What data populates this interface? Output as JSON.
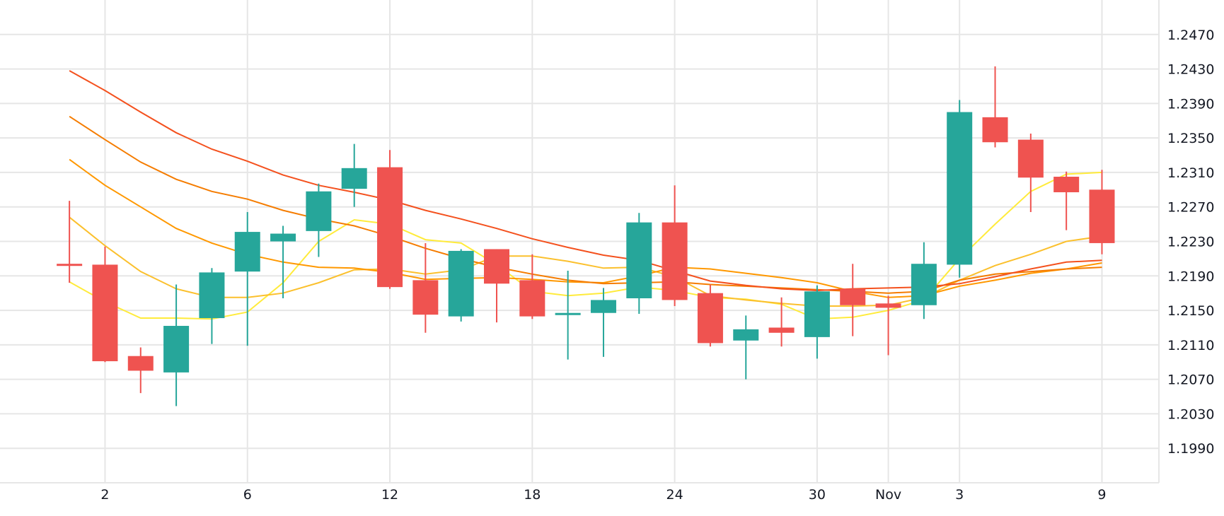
{
  "chart_data": {
    "type": "candlestick",
    "x_tick_labels": [
      {
        "x": 2,
        "label": "2"
      },
      {
        "x": 6,
        "label": "6"
      },
      {
        "x": 10,
        "label": "12"
      },
      {
        "x": 14,
        "label": "18"
      },
      {
        "x": 18,
        "label": "24"
      },
      {
        "x": 22,
        "label": "30"
      },
      {
        "x": 24,
        "label": "Nov"
      },
      {
        "x": 26,
        "label": "3"
      },
      {
        "x": 30,
        "label": "9"
      }
    ],
    "y_ticks": [
      "1.1990",
      "1.2030",
      "1.2070",
      "1.2110",
      "1.2150",
      "1.2190",
      "1.2230",
      "1.2270",
      "1.2310",
      "1.2350",
      "1.2390",
      "1.2430",
      "1.2470"
    ],
    "ylim": [
      1.195,
      1.251
    ],
    "xlim": [
      -0.95,
      31.6
    ],
    "colors": {
      "up": "#26a69a",
      "down": "#ef5350",
      "grid": "#e6e6e6"
    },
    "candles": [
      {
        "x": 1,
        "open": 1.2204,
        "high": 1.2277,
        "low": 1.2182,
        "close": 1.2202
      },
      {
        "x": 2,
        "open": 1.2203,
        "high": 1.2224,
        "low": 1.209,
        "close": 1.2091
      },
      {
        "x": 3,
        "open": 1.2097,
        "high": 1.2107,
        "low": 1.2054,
        "close": 1.208
      },
      {
        "x": 4,
        "open": 1.2078,
        "high": 1.218,
        "low": 1.2039,
        "close": 1.2132
      },
      {
        "x": 5,
        "open": 1.2141,
        "high": 1.2199,
        "low": 1.2111,
        "close": 1.2194
      },
      {
        "x": 6,
        "open": 1.2195,
        "high": 1.2264,
        "low": 1.2109,
        "close": 1.2241
      },
      {
        "x": 7,
        "open": 1.223,
        "high": 1.2248,
        "low": 1.2164,
        "close": 1.2239
      },
      {
        "x": 8,
        "open": 1.2242,
        "high": 1.2297,
        "low": 1.2212,
        "close": 1.2288
      },
      {
        "x": 9,
        "open": 1.2291,
        "high": 1.2343,
        "low": 1.227,
        "close": 1.2315
      },
      {
        "x": 10,
        "open": 1.2316,
        "high": 1.2336,
        "low": 1.2175,
        "close": 1.2177
      },
      {
        "x": 11,
        "open": 1.2185,
        "high": 1.2228,
        "low": 1.2124,
        "close": 1.2145
      },
      {
        "x": 12,
        "open": 1.2143,
        "high": 1.2221,
        "low": 1.2137,
        "close": 1.2219
      },
      {
        "x": 13,
        "open": 1.2221,
        "high": 1.2221,
        "low": 1.2136,
        "close": 1.2181
      },
      {
        "x": 14,
        "open": 1.2185,
        "high": 1.2215,
        "low": 1.214,
        "close": 1.2143
      },
      {
        "x": 15,
        "open": 1.2145,
        "high": 1.2196,
        "low": 1.2093,
        "close": 1.2147
      },
      {
        "x": 16,
        "open": 1.2147,
        "high": 1.2176,
        "low": 1.2096,
        "close": 1.2162
      },
      {
        "x": 17,
        "open": 1.2164,
        "high": 1.2263,
        "low": 1.2146,
        "close": 1.2252
      },
      {
        "x": 18,
        "open": 1.2252,
        "high": 1.2295,
        "low": 1.2155,
        "close": 1.2162
      },
      {
        "x": 19,
        "open": 1.217,
        "high": 1.218,
        "low": 1.2108,
        "close": 1.2112
      },
      {
        "x": 20,
        "open": 1.2115,
        "high": 1.2144,
        "low": 1.207,
        "close": 1.2128
      },
      {
        "x": 21,
        "open": 1.213,
        "high": 1.2165,
        "low": 1.2108,
        "close": 1.2124
      },
      {
        "x": 22,
        "open": 1.2119,
        "high": 1.2179,
        "low": 1.2094,
        "close": 1.2172
      },
      {
        "x": 23,
        "open": 1.2175,
        "high": 1.2204,
        "low": 1.212,
        "close": 1.2156
      },
      {
        "x": 24,
        "open": 1.2158,
        "high": 1.2167,
        "low": 1.2098,
        "close": 1.2153
      },
      {
        "x": 25,
        "open": 1.2156,
        "high": 1.2229,
        "low": 1.214,
        "close": 1.2204
      },
      {
        "x": 26,
        "open": 1.2203,
        "high": 1.2394,
        "low": 1.2188,
        "close": 1.238
      },
      {
        "x": 27,
        "open": 1.2374,
        "high": 1.2433,
        "low": 1.2339,
        "close": 1.2345
      },
      {
        "x": 28,
        "open": 1.2348,
        "high": 1.2355,
        "low": 1.2264,
        "close": 1.2304
      },
      {
        "x": 29,
        "open": 1.2305,
        "high": 1.2311,
        "low": 1.2243,
        "close": 1.2287
      },
      {
        "x": 30,
        "open": 1.229,
        "high": 1.2313,
        "low": 1.2215,
        "close": 1.2228
      }
    ],
    "moving_averages": [
      {
        "color": "#ffeb3b",
        "values": [
          [
            1,
            1.2183
          ],
          [
            2,
            1.216
          ],
          [
            3,
            1.2141
          ],
          [
            4,
            1.2141
          ],
          [
            5,
            1.214
          ],
          [
            6,
            1.2148
          ],
          [
            7,
            1.2182
          ],
          [
            8,
            1.223
          ],
          [
            9,
            1.2255
          ],
          [
            10,
            1.225
          ],
          [
            11,
            1.2232
          ],
          [
            12,
            1.2228
          ],
          [
            13,
            1.2203
          ],
          [
            14,
            1.2172
          ],
          [
            15,
            1.2167
          ],
          [
            16,
            1.217
          ],
          [
            17,
            1.2177
          ],
          [
            18,
            1.2173
          ],
          [
            19,
            1.2165
          ],
          [
            20,
            1.2163
          ],
          [
            21,
            1.2157
          ],
          [
            22,
            1.214
          ],
          [
            23,
            1.2142
          ],
          [
            24,
            1.215
          ],
          [
            25,
            1.2162
          ],
          [
            26,
            1.221
          ],
          [
            27,
            1.225
          ],
          [
            28,
            1.2288
          ],
          [
            29,
            1.2308
          ],
          [
            30,
            1.231
          ]
        ]
      },
      {
        "color": "#fbc02d",
        "values": [
          [
            1,
            1.2258
          ],
          [
            2,
            1.2225
          ],
          [
            3,
            1.2195
          ],
          [
            4,
            1.2175
          ],
          [
            5,
            1.2165
          ],
          [
            6,
            1.2165
          ],
          [
            7,
            1.217
          ],
          [
            8,
            1.2182
          ],
          [
            9,
            1.2197
          ],
          [
            10,
            1.2198
          ],
          [
            11,
            1.2192
          ],
          [
            12,
            1.2197
          ],
          [
            13,
            1.2213
          ],
          [
            14,
            1.2213
          ],
          [
            15,
            1.2207
          ],
          [
            16,
            1.2199
          ],
          [
            17,
            1.22
          ],
          [
            18,
            1.2189
          ],
          [
            19,
            1.2167
          ],
          [
            20,
            1.2162
          ],
          [
            21,
            1.2158
          ],
          [
            22,
            1.2155
          ],
          [
            23,
            1.2155
          ],
          [
            24,
            1.2156
          ],
          [
            25,
            1.2165
          ],
          [
            26,
            1.2185
          ],
          [
            27,
            1.2202
          ],
          [
            28,
            1.2215
          ],
          [
            29,
            1.223
          ],
          [
            30,
            1.2236
          ]
        ]
      },
      {
        "color": "#ff9800",
        "values": [
          [
            1,
            1.2325
          ],
          [
            2,
            1.2295
          ],
          [
            3,
            1.227
          ],
          [
            4,
            1.2245
          ],
          [
            5,
            1.2228
          ],
          [
            6,
            1.2215
          ],
          [
            7,
            1.2206
          ],
          [
            8,
            1.22
          ],
          [
            9,
            1.2199
          ],
          [
            10,
            1.2194
          ],
          [
            11,
            1.2186
          ],
          [
            12,
            1.2187
          ],
          [
            13,
            1.2188
          ],
          [
            14,
            1.2186
          ],
          [
            15,
            1.2183
          ],
          [
            16,
            1.2182
          ],
          [
            17,
            1.219
          ],
          [
            18,
            1.22
          ],
          [
            19,
            1.2198
          ],
          [
            20,
            1.2193
          ],
          [
            21,
            1.2188
          ],
          [
            22,
            1.2182
          ],
          [
            23,
            1.2172
          ],
          [
            24,
            1.2165
          ],
          [
            25,
            1.2167
          ],
          [
            26,
            1.2178
          ],
          [
            27,
            1.2185
          ],
          [
            28,
            1.2193
          ],
          [
            29,
            1.2198
          ],
          [
            30,
            1.2205
          ]
        ]
      },
      {
        "color": "#f57c00",
        "values": [
          [
            1,
            1.2375
          ],
          [
            2,
            1.2348
          ],
          [
            3,
            1.2322
          ],
          [
            4,
            1.2302
          ],
          [
            5,
            1.2288
          ],
          [
            6,
            1.2279
          ],
          [
            7,
            1.2266
          ],
          [
            8,
            1.2256
          ],
          [
            9,
            1.2248
          ],
          [
            10,
            1.2236
          ],
          [
            11,
            1.2222
          ],
          [
            12,
            1.221
          ],
          [
            13,
            1.22
          ],
          [
            14,
            1.2192
          ],
          [
            15,
            1.2185
          ],
          [
            16,
            1.2181
          ],
          [
            17,
            1.2182
          ],
          [
            18,
            1.2183
          ],
          [
            19,
            1.218
          ],
          [
            20,
            1.2178
          ],
          [
            21,
            1.2176
          ],
          [
            22,
            1.2174
          ],
          [
            23,
            1.2172
          ],
          [
            24,
            1.217
          ],
          [
            25,
            1.2172
          ],
          [
            26,
            1.2185
          ],
          [
            27,
            1.2192
          ],
          [
            28,
            1.2195
          ],
          [
            29,
            1.2198
          ],
          [
            30,
            1.22
          ]
        ]
      },
      {
        "color": "#f4511e",
        "values": [
          [
            1,
            1.2428
          ],
          [
            2,
            1.2405
          ],
          [
            3,
            1.238
          ],
          [
            4,
            1.2356
          ],
          [
            5,
            1.2337
          ],
          [
            6,
            1.2323
          ],
          [
            7,
            1.2307
          ],
          [
            8,
            1.2295
          ],
          [
            9,
            1.2287
          ],
          [
            10,
            1.2278
          ],
          [
            11,
            1.2266
          ],
          [
            12,
            1.2256
          ],
          [
            13,
            1.2245
          ],
          [
            14,
            1.2233
          ],
          [
            15,
            1.2223
          ],
          [
            16,
            1.2214
          ],
          [
            17,
            1.2208
          ],
          [
            18,
            1.2196
          ],
          [
            19,
            1.2184
          ],
          [
            20,
            1.2179
          ],
          [
            21,
            1.2175
          ],
          [
            22,
            1.2173
          ],
          [
            23,
            1.2175
          ],
          [
            24,
            1.2176
          ],
          [
            25,
            1.2177
          ],
          [
            26,
            1.2181
          ],
          [
            27,
            1.2189
          ],
          [
            28,
            1.2198
          ],
          [
            29,
            1.2206
          ],
          [
            30,
            1.2208
          ]
        ]
      }
    ]
  }
}
